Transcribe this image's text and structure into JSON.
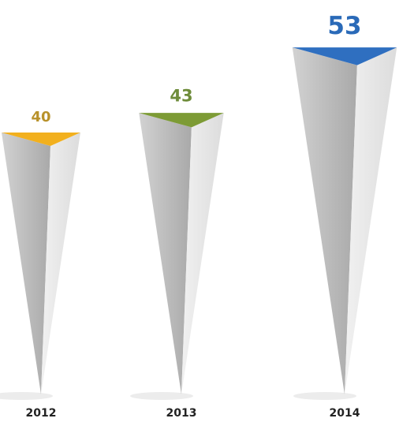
{
  "chart_data": {
    "type": "pyramid",
    "categories": [
      "2012",
      "2013",
      "2014"
    ],
    "values": [
      40,
      43,
      53
    ],
    "colors": [
      "#f2b01e",
      "#7d9b35",
      "#2f6fc0"
    ],
    "label_colors": [
      "#b8912a",
      "#6e8c3a",
      "#2a6ab8"
    ]
  }
}
